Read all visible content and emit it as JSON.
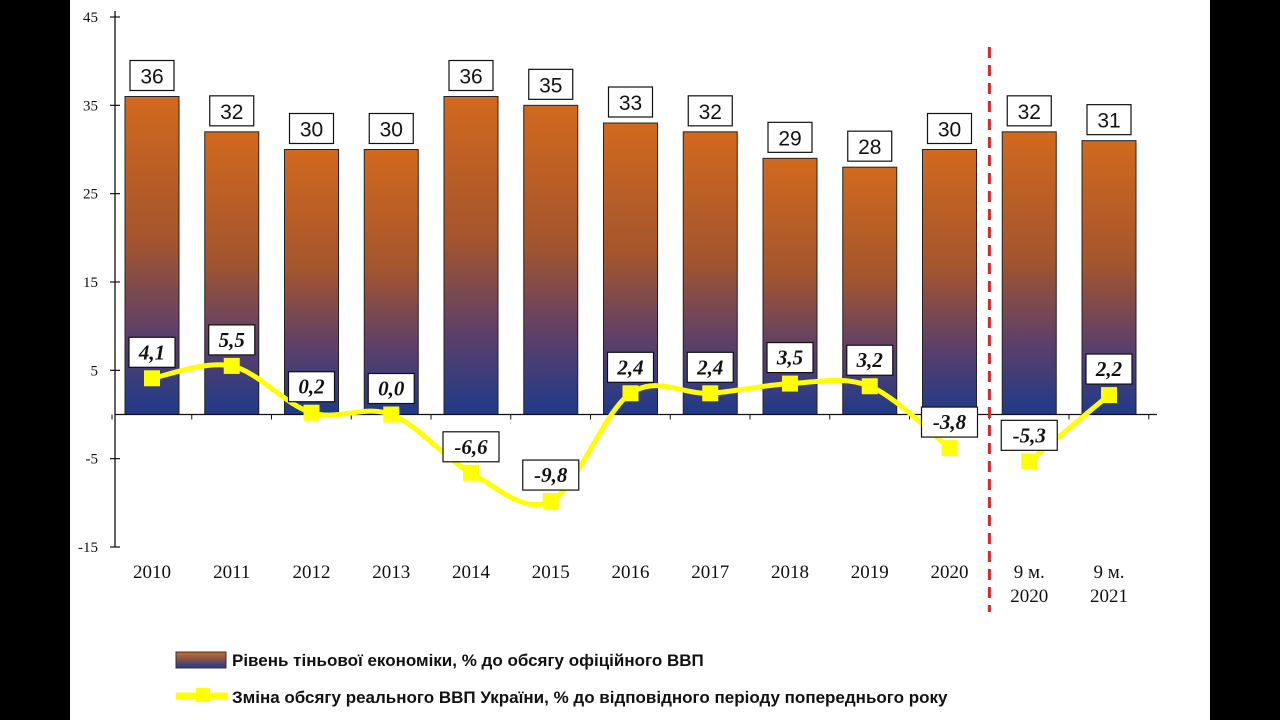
{
  "chart_data": {
    "type": "bar",
    "categories": [
      "2010",
      "2011",
      "2012",
      "2013",
      "2014",
      "2015",
      "2016",
      "2017",
      "2018",
      "2019",
      "2020",
      "9 м.\n2020",
      "9 м.\n2021"
    ],
    "ylim": [
      -15,
      45
    ],
    "yticks": [
      -15,
      -5,
      5,
      15,
      25,
      35,
      45
    ],
    "grid": false,
    "series": [
      {
        "name": "Рівень тіньової економіки, % до обсягу офіційного ВВП",
        "type": "bar",
        "values": [
          36,
          32,
          30,
          30,
          36,
          35,
          33,
          32,
          29,
          28,
          30,
          32,
          31
        ],
        "labels": [
          "36",
          "32",
          "30",
          "30",
          "36",
          "35",
          "33",
          "32",
          "29",
          "28",
          "30",
          "32",
          "31"
        ],
        "color_top": "#d2691e",
        "color_bottom": "#1f3a8a"
      },
      {
        "name": "Зміна обсягу реального ВВП України, % до відповідного періоду попереднього року",
        "type": "line",
        "values": [
          4.1,
          5.5,
          0.2,
          0.0,
          -6.6,
          -9.8,
          2.4,
          2.4,
          3.5,
          3.2,
          -3.8,
          -5.3,
          2.2
        ],
        "labels": [
          "4,1",
          "5,5",
          "0,2",
          "0,0",
          "-6,6",
          "-9,8",
          "2,4",
          "2,4",
          "3,5",
          "3,2",
          "-3,8",
          "-5,3",
          "2,2"
        ],
        "break_after_index": 10,
        "color": "#ffff00"
      }
    ],
    "divider": {
      "after_category_index": 10,
      "style": "dashed",
      "color": "#d62728"
    },
    "legend_position": "bottom"
  }
}
